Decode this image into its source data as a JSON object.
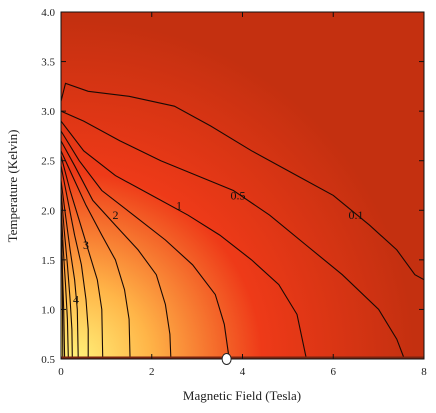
{
  "chart_data": {
    "type": "contour",
    "xlabel": "Magnetic Field (Tesla)",
    "ylabel": "Temperature (Kelvin)",
    "xlim": [
      0,
      8
    ],
    "ylim": [
      0.5,
      4.0
    ],
    "x_ticks": [
      0,
      2,
      4,
      6,
      8
    ],
    "x_tick_labels": [
      "0",
      "2",
      "4",
      "6",
      "8"
    ],
    "y_ticks": [
      0.5,
      1.0,
      1.5,
      2.0,
      2.5,
      3.0,
      3.5,
      4.0
    ],
    "y_tick_labels": [
      "0.5",
      "1.0",
      "1.5",
      "2.0",
      "2.5",
      "3.0",
      "3.5",
      "4.0"
    ],
    "colors": {
      "low": "#c43010",
      "mid": "#ee3a18",
      "high": "#fff27a"
    },
    "contours": [
      {
        "level": 0.1,
        "label": "0.1",
        "label_at": [
          6.5,
          1.95
        ],
        "points": [
          [
            0,
            3.1
          ],
          [
            0.1,
            3.28
          ],
          [
            0.6,
            3.2
          ],
          [
            1.5,
            3.15
          ],
          [
            2.5,
            3.05
          ],
          [
            3.3,
            2.85
          ],
          [
            4.2,
            2.6
          ],
          [
            5.2,
            2.35
          ],
          [
            6.0,
            2.15
          ],
          [
            6.8,
            1.85
          ],
          [
            7.4,
            1.6
          ],
          [
            7.8,
            1.35
          ],
          [
            8.0,
            1.3
          ]
        ]
      },
      {
        "level": 0.5,
        "label": "0.5",
        "label_at": [
          3.9,
          2.15
        ],
        "points": [
          [
            0,
            3.0
          ],
          [
            0.5,
            2.9
          ],
          [
            1.3,
            2.7
          ],
          [
            2.2,
            2.5
          ],
          [
            3.0,
            2.35
          ],
          [
            3.8,
            2.2
          ],
          [
            4.6,
            1.95
          ],
          [
            5.4,
            1.65
          ],
          [
            6.2,
            1.35
          ],
          [
            7.0,
            1.0
          ],
          [
            7.4,
            0.7
          ],
          [
            7.55,
            0.52
          ]
        ]
      },
      {
        "level": 1,
        "label": "1",
        "label_at": [
          2.6,
          2.05
        ],
        "points": [
          [
            0,
            2.9
          ],
          [
            0.5,
            2.6
          ],
          [
            1.2,
            2.35
          ],
          [
            2.0,
            2.15
          ],
          [
            2.8,
            1.95
          ],
          [
            3.5,
            1.75
          ],
          [
            4.2,
            1.5
          ],
          [
            4.8,
            1.25
          ],
          [
            5.2,
            0.95
          ],
          [
            5.4,
            0.52
          ]
        ]
      },
      {
        "level": 1.5,
        "label": "",
        "points": [
          [
            0,
            2.8
          ],
          [
            0.4,
            2.5
          ],
          [
            0.9,
            2.2
          ],
          [
            1.6,
            1.95
          ],
          [
            2.3,
            1.7
          ],
          [
            2.9,
            1.45
          ],
          [
            3.4,
            1.15
          ],
          [
            3.6,
            0.85
          ],
          [
            3.7,
            0.52
          ]
        ]
      },
      {
        "level": 2,
        "label": "2",
        "label_at": [
          1.2,
          1.95
        ],
        "points": [
          [
            0,
            2.7
          ],
          [
            0.3,
            2.45
          ],
          [
            0.7,
            2.1
          ],
          [
            1.2,
            1.85
          ],
          [
            1.7,
            1.6
          ],
          [
            2.1,
            1.35
          ],
          [
            2.3,
            1.05
          ],
          [
            2.4,
            0.75
          ],
          [
            2.42,
            0.52
          ]
        ]
      },
      {
        "level": 2.5,
        "label": "",
        "points": [
          [
            0,
            2.6
          ],
          [
            0.25,
            2.35
          ],
          [
            0.55,
            2.05
          ],
          [
            0.9,
            1.75
          ],
          [
            1.2,
            1.5
          ],
          [
            1.4,
            1.2
          ],
          [
            1.5,
            0.9
          ],
          [
            1.52,
            0.52
          ]
        ]
      },
      {
        "level": 3,
        "label": "3",
        "label_at": [
          0.55,
          1.65
        ],
        "points": [
          [
            0,
            2.55
          ],
          [
            0.2,
            2.2
          ],
          [
            0.4,
            1.9
          ],
          [
            0.6,
            1.6
          ],
          [
            0.8,
            1.3
          ],
          [
            0.9,
            1.0
          ],
          [
            0.92,
            0.52
          ]
        ]
      },
      {
        "level": 3.5,
        "label": "",
        "points": [
          [
            0,
            2.45
          ],
          [
            0.15,
            2.1
          ],
          [
            0.3,
            1.75
          ],
          [
            0.45,
            1.45
          ],
          [
            0.55,
            1.1
          ],
          [
            0.6,
            0.8
          ],
          [
            0.6,
            0.52
          ]
        ]
      },
      {
        "level": 4,
        "label": "4",
        "label_at": [
          0.33,
          1.1
        ],
        "points": [
          [
            0,
            2.3
          ],
          [
            0.1,
            1.95
          ],
          [
            0.2,
            1.6
          ],
          [
            0.3,
            1.3
          ],
          [
            0.36,
            1.0
          ],
          [
            0.38,
            0.52
          ]
        ]
      },
      {
        "level": 4.5,
        "label": "",
        "points": [
          [
            0,
            2.2
          ],
          [
            0.07,
            1.8
          ],
          [
            0.14,
            1.45
          ],
          [
            0.2,
            1.1
          ],
          [
            0.24,
            0.8
          ],
          [
            0.25,
            0.52
          ]
        ]
      },
      {
        "level": 5,
        "label": "",
        "points": [
          [
            0,
            2.05
          ],
          [
            0.05,
            1.6
          ],
          [
            0.1,
            1.25
          ],
          [
            0.14,
            0.9
          ],
          [
            0.16,
            0.52
          ]
        ]
      },
      {
        "level": 5.5,
        "label": "",
        "points": [
          [
            0,
            1.9
          ],
          [
            0.03,
            1.4
          ],
          [
            0.06,
            1.0
          ],
          [
            0.08,
            0.52
          ]
        ]
      },
      {
        "level": 6,
        "label": "",
        "points": [
          [
            0.02,
            1.7
          ],
          [
            0.03,
            1.2
          ],
          [
            0.04,
            0.52
          ]
        ]
      }
    ],
    "marker": {
      "x": 3.65,
      "y": 0.5,
      "shape": "open-circle"
    }
  }
}
